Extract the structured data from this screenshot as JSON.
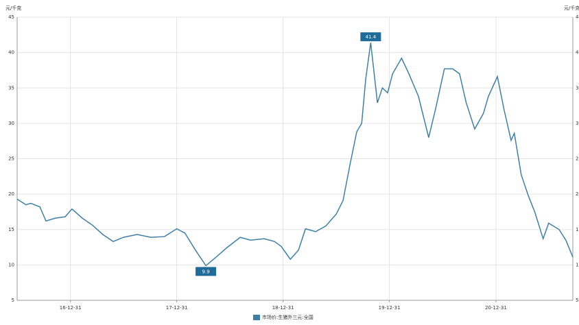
{
  "chart_data": {
    "type": "line",
    "y_unit": "元/千克",
    "x": [
      "16-07-01",
      "16-07-31",
      "16-08-17",
      "16-09-17",
      "16-10-08",
      "16-11-08",
      "16-12-13",
      "17-01-05",
      "17-02-10",
      "17-03-17",
      "17-04-21",
      "17-05-27",
      "17-07-01",
      "17-08-17",
      "17-10-03",
      "17-11-19",
      "17-12-31",
      "18-01-28",
      "18-03-05",
      "18-04-10",
      "18-05-15",
      "18-06-20",
      "18-08-06",
      "18-09-10",
      "18-10-27",
      "18-12-02",
      "18-12-25",
      "19-01-25",
      "19-02-22",
      "19-03-18",
      "19-04-22",
      "19-05-27",
      "19-07-02",
      "19-07-25",
      "19-08-18",
      "19-09-10",
      "19-09-27",
      "19-10-11",
      "19-10-28",
      "19-11-20",
      "19-12-07",
      "19-12-25",
      "20-01-11",
      "20-02-11",
      "20-03-05",
      "20-04-09",
      "20-05-14",
      "20-06-06",
      "20-07-07",
      "20-08-04",
      "20-08-28",
      "20-09-20",
      "20-10-19",
      "20-11-18",
      "20-12-05",
      "21-01-05",
      "21-01-28",
      "21-02-21",
      "21-03-04",
      "21-03-28",
      "21-04-21",
      "21-05-14",
      "21-06-11",
      "21-06-30",
      "21-08-05",
      "21-08-28",
      "21-09-21"
    ],
    "series": [
      {
        "name": "市场价:生猪外三元:全国",
        "color": "#3d7fa6",
        "values": [
          19.3,
          18.5,
          18.7,
          18.2,
          16.2,
          16.6,
          16.8,
          17.9,
          16.6,
          15.6,
          14.3,
          13.3,
          13.9,
          14.3,
          13.9,
          14.0,
          15.1,
          14.5,
          12.1,
          9.9,
          11.1,
          12.4,
          13.9,
          13.5,
          13.7,
          13.3,
          12.6,
          10.8,
          12.1,
          15.1,
          14.7,
          15.5,
          17.2,
          19.1,
          24.2,
          28.8,
          30.0,
          36.3,
          41.4,
          32.9,
          35.0,
          34.3,
          37.0,
          39.2,
          37.2,
          33.8,
          28.0,
          31.9,
          37.7,
          37.7,
          37.0,
          32.9,
          29.2,
          31.4,
          33.8,
          36.6,
          31.9,
          27.6,
          28.6,
          22.7,
          19.8,
          17.4,
          13.7,
          15.9,
          15.0,
          13.5,
          11.1
        ]
      }
    ],
    "annotations": [
      {
        "x": "18-04-10",
        "text": "9.9"
      },
      {
        "x": "19-10-28",
        "text": "41.4"
      }
    ],
    "annotation_color": "#1f6b99",
    "xlim": [
      "16-07-01",
      "21-09-21"
    ],
    "xticks": [
      "16-12-31",
      "17-12-31",
      "18-12-31",
      "19-12-31",
      "20-12-31"
    ],
    "ylim": [
      5,
      45
    ],
    "yticks": [
      5,
      10,
      15,
      20,
      25,
      30,
      35,
      40,
      45
    ],
    "grid": true,
    "legend": "bottom"
  }
}
